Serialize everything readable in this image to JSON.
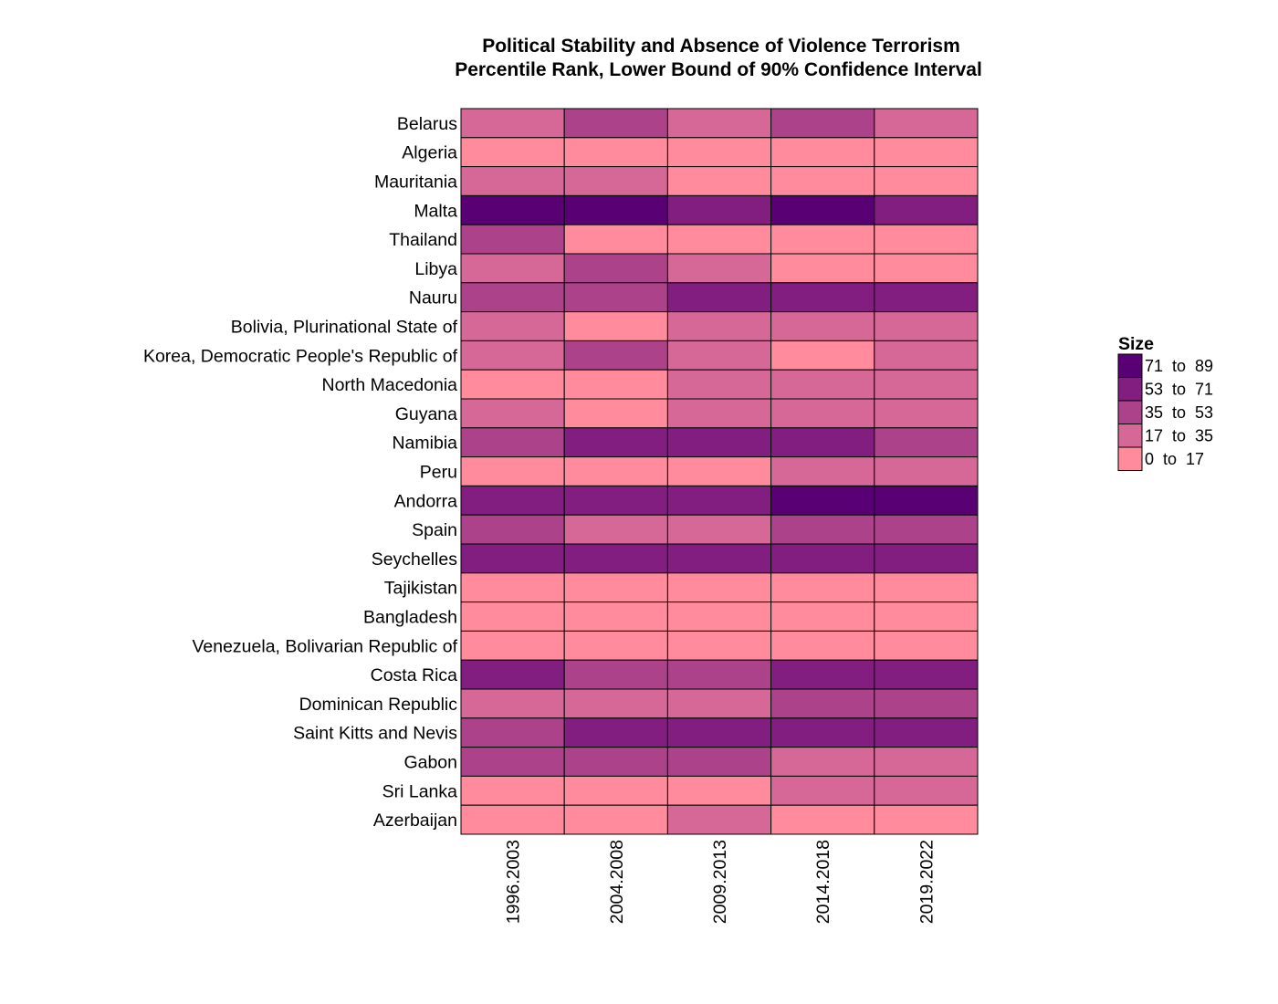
{
  "chart_data": {
    "type": "heatmap",
    "title": "Political Stability and Absence of Violence Terrorism",
    "subtitle": "Percentile Rank, Lower Bound of 90% Confidence Interval",
    "xlabel": "",
    "ylabel": "",
    "columns": [
      "1996.2003",
      "2004.2008",
      "2009.2013",
      "2014.2018",
      "2019.2022"
    ],
    "rows": [
      "Belarus",
      "Algeria",
      "Mauritania",
      "Malta",
      "Thailand",
      "Libya",
      "Nauru",
      "Bolivia, Plurinational State of",
      "Korea, Democratic People's Republic of",
      "North Macedonia",
      "Guyana",
      "Namibia",
      "Peru",
      "Andorra",
      "Spain",
      "Seychelles",
      "Tajikistan",
      "Bangladesh",
      "Venezuela, Bolivarian Republic of",
      "Costa Rica",
      "Dominican Republic",
      "Saint Kitts and Nevis",
      "Gabon",
      "Sri Lanka",
      "Azerbaijan"
    ],
    "bins": [
      {
        "label": "71  to  89",
        "color": "#5a0075"
      },
      {
        "label": "53  to  71",
        "color": "#811e80"
      },
      {
        "label": "35  to  53",
        "color": "#ac4289"
      },
      {
        "label": "17  to  35",
        "color": "#d56896"
      },
      {
        "label": "0  to  17",
        "color": "#ff8b9d"
      }
    ],
    "values": [
      [
        3,
        2,
        3,
        2,
        3
      ],
      [
        4,
        4,
        4,
        4,
        4
      ],
      [
        3,
        3,
        4,
        4,
        4
      ],
      [
        0,
        0,
        1,
        0,
        1
      ],
      [
        2,
        4,
        4,
        4,
        4
      ],
      [
        3,
        2,
        3,
        4,
        4
      ],
      [
        2,
        2,
        1,
        1,
        1
      ],
      [
        3,
        4,
        3,
        3,
        3
      ],
      [
        3,
        2,
        3,
        4,
        3
      ],
      [
        4,
        4,
        3,
        3,
        3
      ],
      [
        3,
        4,
        3,
        3,
        3
      ],
      [
        2,
        1,
        1,
        1,
        2
      ],
      [
        4,
        4,
        4,
        3,
        3
      ],
      [
        1,
        1,
        1,
        0,
        0
      ],
      [
        2,
        3,
        3,
        2,
        2
      ],
      [
        1,
        1,
        1,
        1,
        1
      ],
      [
        4,
        4,
        4,
        4,
        4
      ],
      [
        4,
        4,
        4,
        4,
        4
      ],
      [
        4,
        4,
        4,
        4,
        4
      ],
      [
        1,
        2,
        2,
        1,
        1
      ],
      [
        3,
        3,
        3,
        2,
        2
      ],
      [
        2,
        1,
        1,
        1,
        1
      ],
      [
        2,
        2,
        2,
        3,
        3
      ],
      [
        4,
        4,
        4,
        3,
        3
      ],
      [
        4,
        4,
        3,
        4,
        4
      ]
    ],
    "legend": {
      "title": "Size",
      "position": "right"
    },
    "grid": false
  }
}
